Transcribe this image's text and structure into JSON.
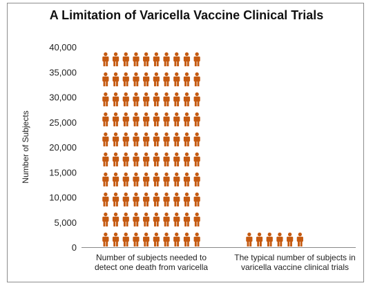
{
  "colors": {
    "icon": "#c55a11",
    "axis": "#888888",
    "text": "#222222"
  },
  "chart_data": {
    "type": "bar",
    "style": "pictogram",
    "title": "A Limitation of Varicella Vaccine Clinical Trials",
    "xlabel": "",
    "ylabel": "Number of Subjects",
    "ylim": [
      0,
      40000
    ],
    "yticks": [
      0,
      5000,
      10000,
      15000,
      20000,
      25000,
      30000,
      35000,
      40000
    ],
    "ytick_labels": [
      "0",
      "5,000",
      "10,000",
      "15,000",
      "20,000",
      "25,000",
      "30,000",
      "35,000",
      "40,000"
    ],
    "categories": [
      [
        "Number of subjects needed to",
        "detect one death from varicella"
      ],
      [
        "The typical number of subjects in",
        "varicella vaccine clinical trials"
      ]
    ],
    "values": [
      40000,
      2500
    ],
    "icon_columns": 10,
    "icon": "person-icon",
    "grid": false
  }
}
